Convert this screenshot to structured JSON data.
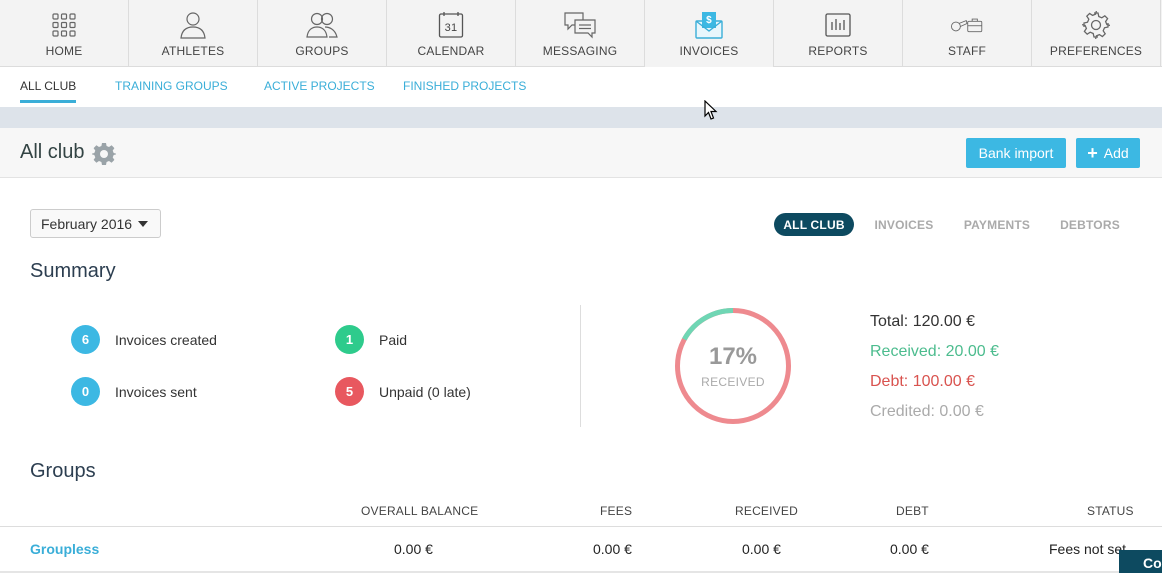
{
  "nav": {
    "items": [
      {
        "label": "HOME",
        "icon": "grid-icon"
      },
      {
        "label": "ATHLETES",
        "icon": "person-icon"
      },
      {
        "label": "GROUPS",
        "icon": "people-icon"
      },
      {
        "label": "CALENDAR",
        "icon": "calendar-icon",
        "icon_text": "31"
      },
      {
        "label": "MESSAGING",
        "icon": "chat-bubbles-icon"
      },
      {
        "label": "INVOICES",
        "icon": "invoice-envelope-icon",
        "icon_text": "$"
      },
      {
        "label": "REPORTS",
        "icon": "bar-report-icon"
      },
      {
        "label": "STAFF",
        "icon": "whistle-briefcase-icon"
      },
      {
        "label": "PREFERENCES",
        "icon": "gear-icon"
      }
    ],
    "active": "INVOICES"
  },
  "subtabs": [
    "ALL CLUB",
    "TRAINING GROUPS",
    "ACTIVE PROJECTS",
    "FINISHED PROJECTS"
  ],
  "header": {
    "title": "All club",
    "bank_import_label": "Bank import",
    "add_label": "Add"
  },
  "filters": {
    "month": "February 2016",
    "views": [
      "ALL CLUB",
      "INVOICES",
      "PAYMENTS",
      "DEBTORS"
    ],
    "active_view": "ALL CLUB"
  },
  "summary": {
    "title": "Summary",
    "stats": [
      {
        "count": "6",
        "label": "Invoices created",
        "color": "#3cb8e3"
      },
      {
        "count": "1",
        "label": "Paid",
        "color": "#2ecb8c"
      },
      {
        "count": "0",
        "label": "Invoices sent",
        "color": "#3cb8e3"
      },
      {
        "count": "5",
        "label": "Unpaid (0 late)",
        "color": "#e8585f"
      }
    ],
    "donut": {
      "percent_label": "17%",
      "caption": "RECEIVED",
      "received_fraction": 0.17,
      "received_color": "#6fd6b4",
      "debt_color": "#ee8a8f"
    },
    "totals": {
      "total": "Total: 120.00 €",
      "received": "Received: 20.00 €",
      "debt": "Debt: 100.00 €",
      "credited": "Credited: 0.00 €"
    }
  },
  "groups": {
    "title": "Groups",
    "columns": [
      "OVERALL BALANCE",
      "FEES",
      "RECEIVED",
      "DEBT",
      "STATUS"
    ],
    "rows": [
      {
        "name": "Groupless",
        "overall_balance": "0.00 €",
        "fees": "0.00 €",
        "received": "0.00 €",
        "debt": "0.00 €",
        "status": "Fees not set"
      }
    ]
  },
  "chat_widget": {
    "label": "Co"
  }
}
